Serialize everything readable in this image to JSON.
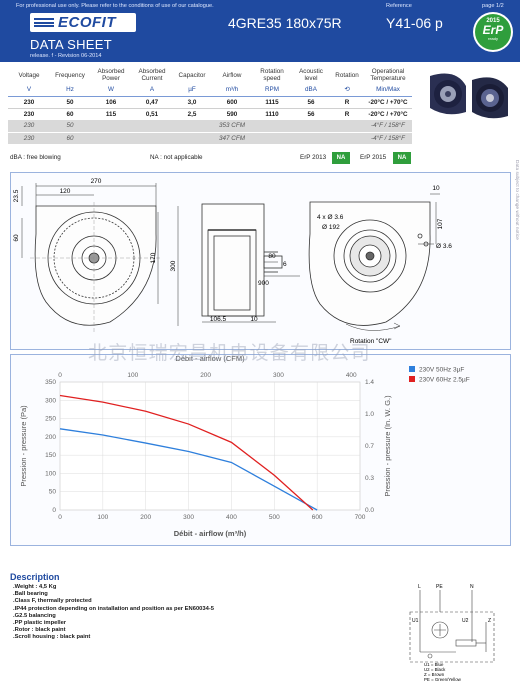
{
  "header": {
    "notice": "For professional use only. Please refer to the conditions of use of our catalogue.",
    "reference_label": "Reference",
    "page_label": "page 1/2",
    "logo_text": "ECOFIT",
    "doc_title": "DATA SHEET",
    "release": "release. f - Revision 06-2014",
    "model": "4GRE35 180x75R",
    "reference": "Y41-06 p",
    "erp_badge": {
      "year": "2015",
      "label": "ErP",
      "sub": "ready"
    }
  },
  "spec_table": {
    "columns": [
      "Voltage",
      "Frequency",
      "Absorbed Power",
      "Absorbed Current",
      "Capacitor",
      "Airflow",
      "Rotation speed",
      "Acoustic level",
      "Rotation",
      "Operational Temperature"
    ],
    "units": [
      "V",
      "Hz",
      "W",
      "A",
      "µF",
      "m³/h",
      "RPM",
      "dBA",
      "⟲",
      "Min/Max"
    ],
    "rows": [
      [
        "230",
        "50",
        "106",
        "0,47",
        "3,0",
        "600",
        "1115",
        "56",
        "R",
        "-20°C / +70°C"
      ],
      [
        "230",
        "60",
        "115",
        "0,51",
        "2,5",
        "590",
        "1110",
        "56",
        "R",
        "-20°C / +70°C"
      ]
    ],
    "imperial_rows": [
      {
        "voltage": "230",
        "frequency": "50",
        "airflow": "353 CFM",
        "temp": "-4°F / 158°F"
      },
      {
        "voltage": "230",
        "frequency": "60",
        "airflow": "347 CFM",
        "temp": "-4°F / 158°F"
      }
    ],
    "footnote_dba": "dBA : free blowing",
    "footnote_na": "NA : not applicable",
    "erp2013_label": "ErP 2013",
    "erp2013_value": "NA",
    "erp2015_label": "ErP 2015",
    "erp2015_value": "NA"
  },
  "drawing": {
    "dim_270": "270",
    "dim_120": "120",
    "dim_23_5": "23.5",
    "dim_60": "60",
    "dim_170": "170",
    "dim_300": "300",
    "dim_80": "80",
    "dim_6": "6",
    "dim_900": "900",
    "dim_106_5": "106.5",
    "dim_10_bottom": "10",
    "dim_10_top": "10",
    "dim_107": "107",
    "holes": "4 x Ø 3.6",
    "pcd": "Ø 192",
    "hole_single": "Ø 3.6",
    "rotation": "Rotation \"CW\""
  },
  "chart_data": {
    "type": "line",
    "top_axis_label": "Débit - airflow (CFM)",
    "xlabel": "Débit - airflow (m³/h)",
    "ylabel": "Pression - pressure (Pa)",
    "y2label": "Pression - pressure (In. W. G.)",
    "xlim": [
      0,
      700
    ],
    "ylim": [
      0,
      350
    ],
    "x_ticks": [
      0,
      100,
      200,
      300,
      400,
      500,
      600,
      700
    ],
    "y_ticks": [
      0,
      50,
      100,
      150,
      200,
      250,
      300,
      350
    ],
    "top_ticks": [
      0,
      100,
      200,
      300,
      400
    ],
    "y2_ticks": [
      "0.0",
      "0.3",
      "0.7",
      "1.0",
      "1.4"
    ],
    "grid": true,
    "legend_position": "top-right",
    "series": [
      {
        "name": "230V 50Hz 3µF",
        "color": "#2e7fdc",
        "x": [
          0,
          100,
          200,
          300,
          400,
          500,
          600
        ],
        "y": [
          222,
          205,
          183,
          160,
          130,
          65,
          0
        ]
      },
      {
        "name": "230V 60Hz 2.5µF",
        "color": "#e02020",
        "x": [
          0,
          100,
          200,
          300,
          400,
          500,
          590
        ],
        "y": [
          313,
          295,
          270,
          235,
          185,
          95,
          0
        ]
      }
    ]
  },
  "description": {
    "title": "Description",
    "items": [
      ".Weight : 4,5 Kg",
      ".Ball bearing",
      ".Class F, thermally protected",
      ".IP44 protection depending on installation and position as per EN60034-5",
      ".G2.5 balancing",
      ".PP plastic impeller",
      ".Rotor : black paint",
      ".Scroll housing : black paint"
    ]
  },
  "wiring": {
    "L": "L",
    "PE": "PE",
    "N": "N",
    "U1": "U1",
    "U2": "U2",
    "Z": "Z",
    "legend": [
      "U1 = Blue",
      "U2 = Black",
      "Z = Brown",
      "PE = Green/Yellow"
    ]
  },
  "watermark": "北京恒瑞宏昌机电设备有限公司"
}
